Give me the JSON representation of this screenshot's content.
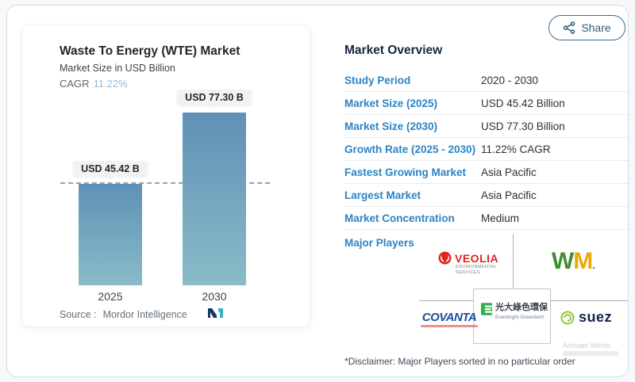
{
  "share": {
    "label": "Share"
  },
  "chart": {
    "title": "Waste To Energy (WTE) Market",
    "subtitle": "Market Size in USD Billion",
    "cagr_label": "CAGR",
    "cagr_value": "11.22%",
    "source_label": "Source :",
    "source_value": "Mordor Intelligence"
  },
  "chart_data": {
    "type": "bar",
    "categories": [
      "2025",
      "2030"
    ],
    "values": [
      45.42,
      77.3
    ],
    "bar_labels": [
      "USD 45.42 B",
      "USD 77.30 B"
    ],
    "title": "Waste To Energy (WTE) Market",
    "subtitle": "Market Size in USD Billion",
    "xlabel": "",
    "ylabel": "Market Size in USD Billion",
    "ylim": [
      0,
      77.3
    ],
    "grid": false,
    "legend": "none",
    "reference_line": {
      "y": 45.42,
      "style": "dashed"
    },
    "bar_color_top": "#6090b7",
    "bar_color_bottom": "#89bcc7"
  },
  "overview": {
    "title": "Market Overview",
    "rows": [
      {
        "label": "Study Period",
        "value": "2020 - 2030"
      },
      {
        "label": "Market Size (2025)",
        "value": "USD 45.42 Billion"
      },
      {
        "label": "Market Size (2030)",
        "value": "USD 77.30 Billion"
      },
      {
        "label": "Growth Rate (2025 - 2030)",
        "value": "11.22% CAGR"
      },
      {
        "label": "Fastest Growing Market",
        "value": "Asia Pacific"
      },
      {
        "label": "Largest Market",
        "value": "Asia Pacific"
      },
      {
        "label": "Market Concentration",
        "value": "Medium"
      }
    ],
    "major_players_label": "Major Players",
    "players": [
      "Veolia Environmental Services",
      "WM",
      "Covanta",
      "Everbright Greentech",
      "Suez"
    ],
    "disclaimer": "*Disclaimer: Major Players sorted in no particular order"
  },
  "logos": {
    "veolia": {
      "name": "VEOLIA",
      "sub1": "ENVIRONMENTAL",
      "sub2": "SERVICES"
    },
    "wm": {
      "w": "W",
      "m": "M",
      "dot": "."
    },
    "covanta": {
      "name": "COVANTA"
    },
    "everbright": {
      "cn": "光大綠色環保",
      "en": "Everbright Greentech"
    },
    "suez": {
      "name": "suez"
    }
  },
  "watermark": {
    "line1": "Activate Windo"
  },
  "colors": {
    "label_blue": "#2b84c4",
    "title_navy": "#14283c",
    "cagr_light_blue": "#92bddc",
    "veolia_red": "#e1251b",
    "wm_green": "#3e8e2f",
    "wm_gold": "#eda900",
    "covanta_blue": "#1d4f9e",
    "everbright_green": "#2fae49",
    "suez_lime": "#8dc63f",
    "suez_navy": "#15254f",
    "mordor_navy": "#16355f",
    "mordor_teal": "#3fb0cc"
  }
}
